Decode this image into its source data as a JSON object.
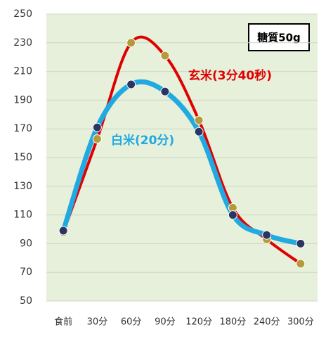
{
  "chart_data": {
    "type": "line",
    "smooth": true,
    "annotation": "糖質50g",
    "categories": [
      "食前",
      "30分",
      "60分",
      "90分",
      "120分",
      "180分",
      "240分",
      "300分"
    ],
    "series": [
      {
        "name": "玄米(3分40秒)",
        "color": "#e00000",
        "marker_color": "#b59a3a",
        "values": [
          98,
          163,
          230,
          221,
          176,
          115,
          93,
          76
        ]
      },
      {
        "name": "白米(20分)",
        "color": "#21a9e1",
        "marker_color": "#2b3561",
        "values": [
          99,
          171,
          201,
          196,
          168,
          110,
          96,
          90
        ]
      }
    ],
    "ylim": [
      50,
      250
    ],
    "yticks": [
      50,
      70,
      90,
      110,
      130,
      150,
      170,
      190,
      210,
      230,
      250
    ],
    "grid": true
  }
}
